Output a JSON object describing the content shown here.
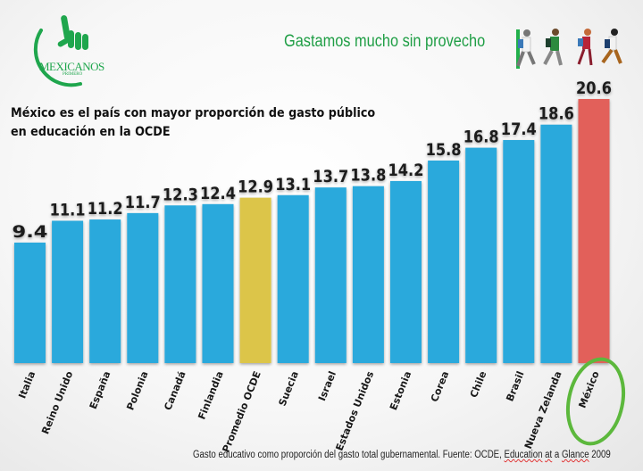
{
  "logo": {
    "name": "MEXICANOS",
    "sub": "PRIMERO"
  },
  "header": {
    "slogan": "Gastamos mucho sin provecho"
  },
  "headline": "México es el país con mayor proporción de gasto público en educación en la OCDE",
  "footnote": {
    "prefix": "Gasto educativo como proporción del gasto total gubernamental. Fuente: OCDE, ",
    "w1": "Education",
    "w2": " ",
    "w3": "at",
    "w4": " a ",
    "w5": "Glance",
    "w6": " 2009"
  },
  "chart_data": {
    "type": "bar",
    "title": "México es el país con mayor proporción de gasto público en educación en la OCDE",
    "xlabel": "",
    "ylabel": "",
    "ylim": [
      0,
      20.6
    ],
    "grid": false,
    "categories": [
      "Italia",
      "Reino Unido",
      "España",
      "Polonia",
      "Canadá",
      "Finlandia",
      "Promedio OCDE",
      "Suecia",
      "Israel",
      "Estados Unidos",
      "Estonia",
      "Corea",
      "Chile",
      "Brasil",
      "Nueva Zelanda",
      "México"
    ],
    "values": [
      9.4,
      11.1,
      11.2,
      11.7,
      12.3,
      12.4,
      12.9,
      13.1,
      13.7,
      13.8,
      14.2,
      15.8,
      16.8,
      17.4,
      18.6,
      20.6
    ],
    "value_labels": [
      "9.4",
      "11.1",
      "11.2",
      "11.7",
      "12.3",
      "12.4",
      "12.9",
      "13.1",
      "13.7",
      "13.8",
      "14.2",
      "15.8",
      "16.8",
      "17.4",
      "18.6",
      "20.6"
    ],
    "colors": {
      "default": "#2aa9dc",
      "average": "#dcc54a",
      "highlight": "#e2615a",
      "circle": "#5cb83c"
    },
    "average_category": "Promedio OCDE",
    "highlight_category": "México"
  }
}
